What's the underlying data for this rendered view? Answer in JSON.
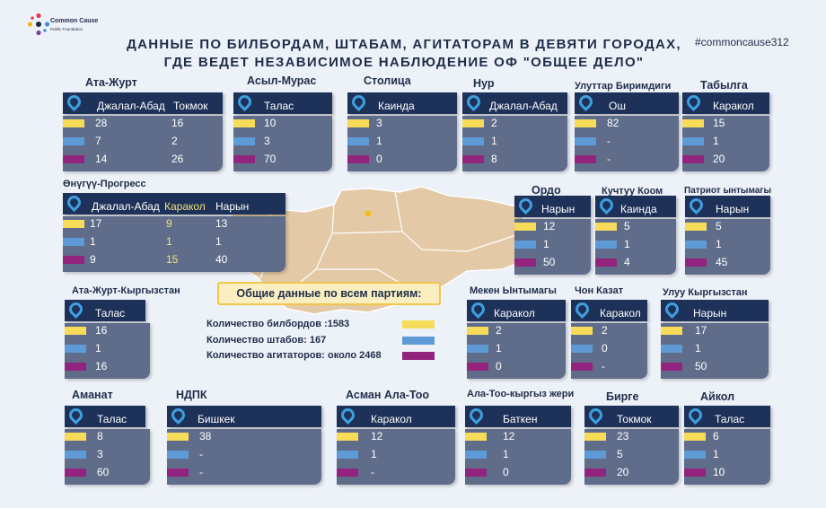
{
  "logo": {
    "name": "Common Cause",
    "sub": "Public Foundation"
  },
  "title_line1": "ДАННЫЕ ПО БИЛБОРДАМ, ШТАБАМ, АГИТАТОРАМ В ДЕВЯТИ ГОРОДАХ,",
  "title_line2": "ГДЕ ВЕДЕТ НЕЗАВИСИМОЕ НАБЛЮДЕНИЕ ОФ \"ОБЩЕЕ ДЕЛО\"",
  "hashtag": "#commoncause312",
  "legend": {
    "yellow": "билборды",
    "blue": "штабы",
    "purple": "агитаторы"
  },
  "colors": {
    "yellow": "#f7dc5a",
    "blue": "#5e9ad6",
    "purple": "#92247d",
    "header": "#1e3158",
    "panel": "#5f6d8a"
  },
  "summary": {
    "title": "Общие данные по всем партиям:",
    "billboards": "Количество  билбордов :1583",
    "hq": "Количество штабов: 167",
    "agitators": "Количество агитаторов: около 2468"
  },
  "parties": [
    {
      "name": "Ата-Журт",
      "cities": [
        "Джалал-Абад",
        "Токмок"
      ],
      "values": [
        [
          "28",
          "7",
          "14"
        ],
        [
          "16",
          "2",
          "26"
        ]
      ]
    },
    {
      "name": "Асыл-Мурас",
      "cities": [
        "Талас"
      ],
      "values": [
        [
          "10",
          "3",
          "70"
        ]
      ]
    },
    {
      "name": "Столица",
      "cities": [
        "Каинда"
      ],
      "values": [
        [
          "3",
          "1",
          "0"
        ]
      ]
    },
    {
      "name": "Нур",
      "cities": [
        "Джалал-Абад"
      ],
      "values": [
        [
          "2",
          "1",
          "8"
        ]
      ]
    },
    {
      "name": "Улуттар Биримдиги",
      "cities": [
        "Ош"
      ],
      "values": [
        [
          "82",
          "-",
          "-"
        ]
      ]
    },
    {
      "name": "Табылга",
      "cities": [
        "Каракол"
      ],
      "values": [
        [
          "15",
          "1",
          "20"
        ]
      ]
    },
    {
      "name": "Өнүгүү-Прогресс",
      "cities": [
        "Джалал-Абад",
        "Каракол",
        "Нарын"
      ],
      "values": [
        [
          "17",
          "1",
          "9"
        ],
        [
          "9",
          "1",
          "15"
        ],
        [
          "13",
          "1",
          "40"
        ]
      ]
    },
    {
      "name": "Ордо",
      "cities": [
        "Нарын"
      ],
      "values": [
        [
          "12",
          "1",
          "50"
        ]
      ]
    },
    {
      "name": "Кучтуу Коом",
      "cities": [
        "Каинда"
      ],
      "values": [
        [
          "5",
          "1",
          "4"
        ]
      ]
    },
    {
      "name": "Патриот ынтымагы",
      "cities": [
        "Нарын"
      ],
      "values": [
        [
          "5",
          "1",
          "45"
        ]
      ]
    },
    {
      "name": "Ата-Журт-Кыргызстан",
      "cities": [
        "Талас"
      ],
      "values": [
        [
          "16",
          "1",
          "16"
        ]
      ]
    },
    {
      "name": "Мекен Ынтымагы",
      "cities": [
        "Каракол"
      ],
      "values": [
        [
          "2",
          "1",
          "0"
        ]
      ]
    },
    {
      "name": "Чон Казат",
      "cities": [
        "Каракол"
      ],
      "values": [
        [
          "2",
          "0",
          "-"
        ]
      ]
    },
    {
      "name": "Улуу Кыргызстан",
      "cities": [
        "Нарын"
      ],
      "values": [
        [
          "17",
          "1",
          "50"
        ]
      ]
    },
    {
      "name": "Аманат",
      "cities": [
        "Талас"
      ],
      "values": [
        [
          "8",
          "3",
          "60"
        ]
      ]
    },
    {
      "name": "НДПК",
      "cities": [
        "Бишкек"
      ],
      "values": [
        [
          "38",
          "-",
          "-"
        ]
      ]
    },
    {
      "name": "Асман Ала-Тоо",
      "cities": [
        "Каракол"
      ],
      "values": [
        [
          "12",
          "1",
          "-"
        ]
      ]
    },
    {
      "name": "Ала-Тоо-кыргыз жери",
      "cities": [
        "Баткен"
      ],
      "values": [
        [
          "12",
          "1",
          "0"
        ]
      ]
    },
    {
      "name": "Бирге",
      "cities": [
        "Токмок"
      ],
      "values": [
        [
          "23",
          "5",
          "20"
        ]
      ]
    },
    {
      "name": "Айкол",
      "cities": [
        "Талас"
      ],
      "values": [
        [
          "6",
          "1",
          "10"
        ]
      ]
    }
  ]
}
